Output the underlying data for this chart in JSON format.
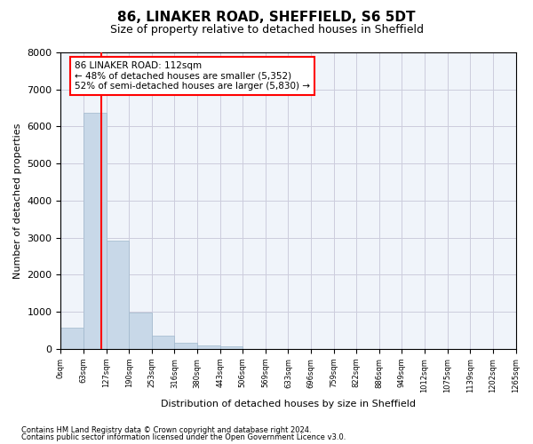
{
  "title": "86, LINAKER ROAD, SHEFFIELD, S6 5DT",
  "subtitle": "Size of property relative to detached houses in Sheffield",
  "xlabel": "Distribution of detached houses by size in Sheffield",
  "ylabel": "Number of detached properties",
  "bar_color": "#c8d8e8",
  "bar_edge_color": "#a0b8cc",
  "grid_color": "#ccccdd",
  "background_color": "#f0f4fa",
  "bin_labels": [
    "0sqm",
    "63sqm",
    "127sqm",
    "190sqm",
    "253sqm",
    "316sqm",
    "380sqm",
    "443sqm",
    "506sqm",
    "569sqm",
    "633sqm",
    "696sqm",
    "759sqm",
    "822sqm",
    "886sqm",
    "949sqm",
    "1012sqm",
    "1075sqm",
    "1139sqm",
    "1202sqm",
    "1265sqm"
  ],
  "bar_heights": [
    570,
    6380,
    2920,
    980,
    360,
    155,
    90,
    60,
    0,
    0,
    0,
    0,
    0,
    0,
    0,
    0,
    0,
    0,
    0,
    0
  ],
  "red_line_x": 1.78,
  "annotation_title": "86 LINAKER ROAD: 112sqm",
  "annotation_line1": "← 48% of detached houses are smaller (5,352)",
  "annotation_line2": "52% of semi-detached houses are larger (5,830) →",
  "footer_line1": "Contains HM Land Registry data © Crown copyright and database right 2024.",
  "footer_line2": "Contains public sector information licensed under the Open Government Licence v3.0.",
  "ylim": [
    0,
    8000
  ],
  "yticks": [
    0,
    1000,
    2000,
    3000,
    4000,
    5000,
    6000,
    7000,
    8000
  ]
}
